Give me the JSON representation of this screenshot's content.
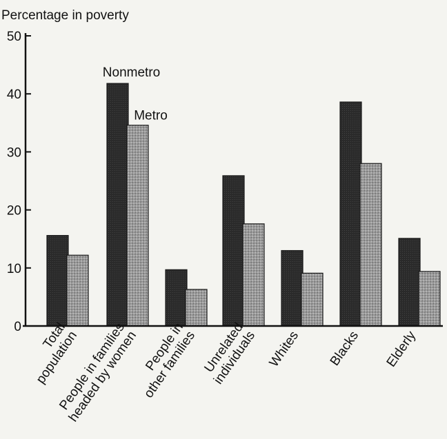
{
  "chart_data": {
    "type": "bar",
    "ylabel": "Percentage in poverty",
    "ylim": [
      0,
      50
    ],
    "yticks": [
      0,
      10,
      20,
      30,
      40,
      50
    ],
    "grid": false,
    "legend": "series labels above the Nonmetro and Metro bars of the second category",
    "categories": [
      {
        "lines": [
          "Total",
          "population"
        ]
      },
      {
        "lines": [
          "People in families",
          "headed by women"
        ]
      },
      {
        "lines": [
          "People in",
          "other families"
        ]
      },
      {
        "lines": [
          "Unrelated",
          "individuals"
        ]
      },
      {
        "lines": [
          "Whites"
        ]
      },
      {
        "lines": [
          "Blacks"
        ]
      },
      {
        "lines": [
          "Elderly"
        ]
      }
    ],
    "series": [
      {
        "name": "Nonmetro",
        "color": "#262626",
        "values": [
          15.6,
          41.8,
          9.7,
          25.9,
          13.0,
          38.6,
          15.1
        ]
      },
      {
        "name": "Metro",
        "color": "#8c8c8c",
        "values": [
          12.2,
          34.6,
          6.3,
          17.6,
          9.1,
          28.0,
          9.4
        ]
      }
    ]
  }
}
